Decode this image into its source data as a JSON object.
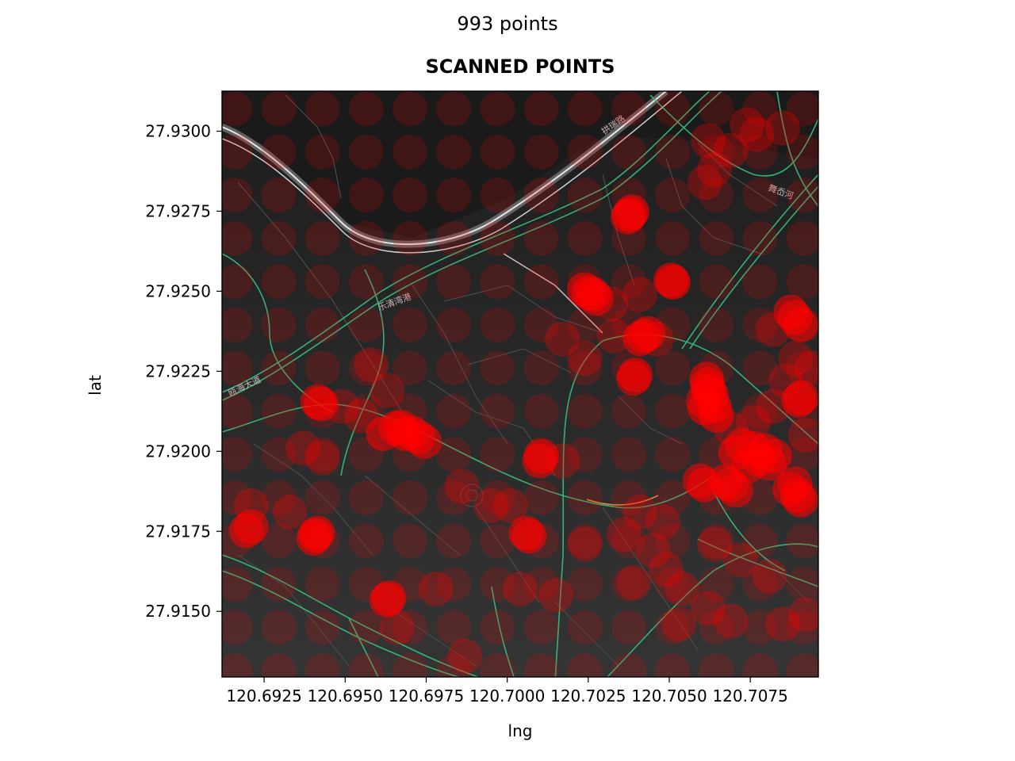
{
  "suptitle": "993 points",
  "chart_data": {
    "type": "scatter",
    "title": "SCANNED POINTS",
    "xlabel": "lng",
    "ylabel": "lat",
    "xlim": [
      120.6912,
      120.7096
    ],
    "ylim": [
      27.91295,
      27.93125
    ],
    "xticks": [
      120.6925,
      120.695,
      120.6975,
      120.7,
      120.7025,
      120.705,
      120.7075
    ],
    "xtick_labels": [
      "120.6925",
      "120.6950",
      "120.6975",
      "120.7000",
      "120.7025",
      "120.7050",
      "120.7075"
    ],
    "yticks": [
      27.915,
      27.9175,
      27.92,
      27.9225,
      27.925,
      27.9275,
      27.93
    ],
    "ytick_labels": [
      "27.9150",
      "27.9175",
      "27.9200",
      "27.9225",
      "27.9250",
      "27.9275",
      "27.9300"
    ],
    "point_color": "#ff0000",
    "background": "dark street map",
    "map_labels": [
      "拱瑞路",
      "乐清湾港",
      "瓯海大道",
      "舞岙河"
    ],
    "grid_spacing": 0.00135,
    "dense_points": [
      [
        120.70252,
        27.92495
      ],
      [
        120.70265,
        27.9249
      ],
      [
        120.70238,
        27.92505
      ],
      [
        120.70275,
        27.92478
      ],
      [
        120.70378,
        27.9274
      ],
      [
        120.70372,
        27.92732
      ],
      [
        120.70385,
        27.92748
      ],
      [
        120.70512,
        27.92528
      ],
      [
        120.70505,
        27.92535
      ],
      [
        120.70422,
        27.9236
      ],
      [
        120.7041,
        27.92352
      ],
      [
        120.70435,
        27.92368
      ],
      [
        120.70395,
        27.92238
      ],
      [
        120.7039,
        27.92228
      ],
      [
        120.70618,
        27.92208
      ],
      [
        120.7063,
        27.92175
      ],
      [
        120.7061,
        27.92135
      ],
      [
        120.70645,
        27.92112
      ],
      [
        120.70622,
        27.9219
      ],
      [
        120.70605,
        27.92158
      ],
      [
        120.70638,
        27.92142
      ],
      [
        120.70615,
        27.92225
      ],
      [
        120.70725,
        27.92018
      ],
      [
        120.7076,
        27.92008
      ],
      [
        120.70795,
        27.92002
      ],
      [
        120.70825,
        27.91985
      ],
      [
        120.70705,
        27.91995
      ],
      [
        120.70775,
        27.91975
      ],
      [
        120.70745,
        27.91955
      ],
      [
        120.70808,
        27.91962
      ],
      [
        120.70872,
        27.91882
      ],
      [
        120.70895,
        27.91862
      ],
      [
        120.70905,
        27.91848
      ],
      [
        120.70888,
        27.91898
      ],
      [
        120.7069,
        27.91895
      ],
      [
        120.70705,
        27.91878
      ],
      [
        120.70672,
        27.91905
      ],
      [
        120.70595,
        27.91908
      ],
      [
        120.70608,
        27.91895
      ],
      [
        120.70875,
        27.92435
      ],
      [
        120.70905,
        27.92395
      ],
      [
        120.70888,
        27.92418
      ],
      [
        120.70908,
        27.92168
      ],
      [
        120.709,
        27.9216
      ],
      [
        120.69425,
        27.92148
      ],
      [
        120.69415,
        27.92155
      ],
      [
        120.69655,
        27.92072
      ],
      [
        120.69685,
        27.92055
      ],
      [
        120.69705,
        27.92058
      ],
      [
        120.69725,
        27.92045
      ],
      [
        120.69745,
        27.9203
      ],
      [
        120.69618,
        27.92055
      ],
      [
        120.69672,
        27.92075
      ],
      [
        120.69408,
        27.91738
      ],
      [
        120.69402,
        27.91728
      ],
      [
        120.69415,
        27.91745
      ],
      [
        120.6921,
        27.91765
      ],
      [
        120.69195,
        27.91752
      ],
      [
        120.69635,
        27.91542
      ],
      [
        120.69628,
        27.91535
      ],
      [
        120.70105,
        27.91985
      ],
      [
        120.701,
        27.9197
      ],
      [
        120.70058,
        27.91745
      ],
      [
        120.70068,
        27.91735
      ]
    ],
    "faint_points": [
      [
        120.7062,
        27.9297
      ],
      [
        120.7069,
        27.9294
      ],
      [
        120.7077,
        27.9299
      ],
      [
        120.7064,
        27.9288
      ],
      [
        120.7061,
        27.9284
      ],
      [
        120.7085,
        27.9301
      ],
      [
        120.7074,
        27.9302
      ],
      [
        120.6958,
        27.9227
      ],
      [
        120.6949,
        27.9214
      ],
      [
        120.6955,
        27.9211
      ],
      [
        120.6937,
        27.9201
      ],
      [
        120.6943,
        27.9198
      ],
      [
        120.6963,
        27.9219
      ],
      [
        120.6933,
        27.9181
      ],
      [
        120.6921,
        27.9183
      ],
      [
        120.7041,
        27.9181
      ],
      [
        120.7048,
        27.9178
      ],
      [
        120.7036,
        27.9174
      ],
      [
        120.7045,
        27.9169
      ],
      [
        120.7049,
        27.9163
      ],
      [
        120.7039,
        27.9159
      ],
      [
        120.7054,
        27.9157
      ],
      [
        120.7053,
        27.9146
      ],
      [
        120.7062,
        27.9151
      ],
      [
        120.7069,
        27.9147
      ],
      [
        120.7085,
        27.9146
      ],
      [
        120.7092,
        27.9149
      ],
      [
        120.7064,
        27.9171
      ],
      [
        120.7072,
        27.9166
      ],
      [
        120.7081,
        27.9161
      ],
      [
        120.6978,
        27.9157
      ],
      [
        120.6987,
        27.9136
      ],
      [
        120.6966,
        27.9145
      ],
      [
        120.7024,
        27.9229
      ],
      [
        120.7033,
        27.9236
      ],
      [
        120.7017,
        27.9235
      ],
      [
        120.7032,
        27.9246
      ],
      [
        120.7041,
        27.9249
      ],
      [
        120.7046,
        27.9235
      ],
      [
        120.7082,
        27.9238
      ],
      [
        120.7089,
        27.9229
      ],
      [
        120.7094,
        27.9226
      ],
      [
        120.7086,
        27.9222
      ],
      [
        120.7076,
        27.9209
      ],
      [
        120.7082,
        27.9214
      ],
      [
        120.7069,
        27.9207
      ],
      [
        120.7092,
        27.9205
      ],
      [
        120.7004,
        27.9157
      ],
      [
        120.7015,
        27.9155
      ],
      [
        120.6995,
        27.9183
      ],
      [
        120.6986,
        27.9189
      ],
      [
        120.7001,
        27.9183
      ],
      [
        120.7017,
        27.9197
      ],
      [
        120.7024,
        27.9171
      ]
    ]
  }
}
